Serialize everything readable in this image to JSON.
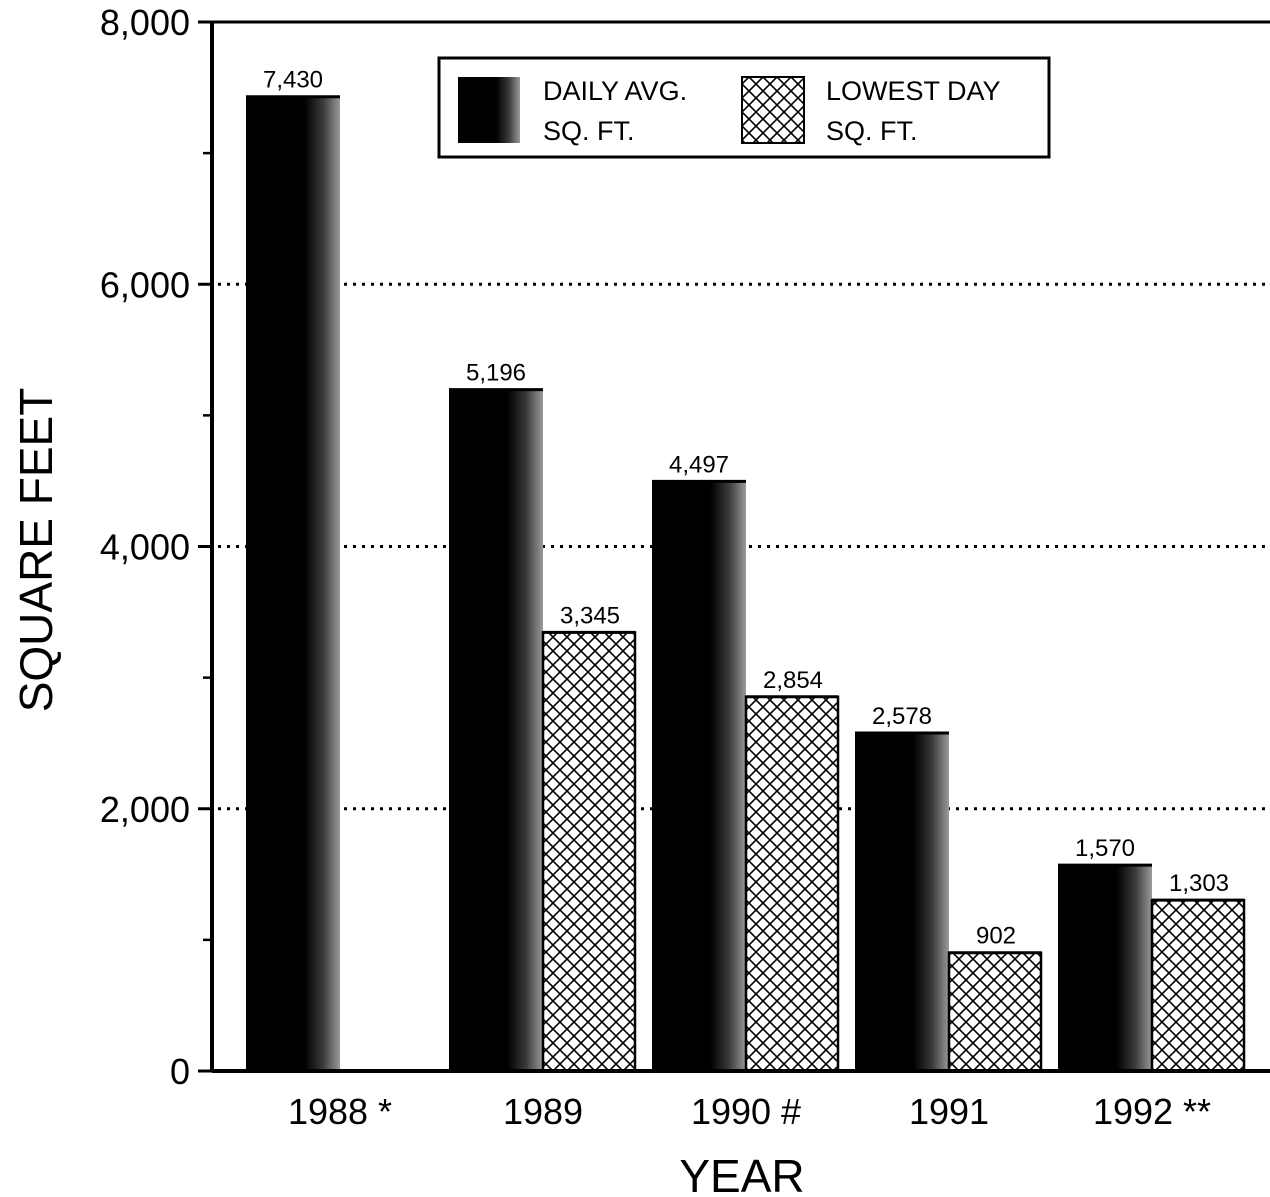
{
  "chart_data": {
    "type": "bar",
    "title": "",
    "xlabel": "YEAR",
    "ylabel": "SQUARE FEET",
    "categories": [
      "1988 *",
      "1989",
      "1990 #",
      "1991",
      "1992 **"
    ],
    "series": [
      {
        "name": "DAILY AVG. SQ. FT.",
        "legend_lines": [
          "DAILY AVG.",
          "SQ. FT."
        ],
        "pattern": "solid-black",
        "values": [
          7430,
          5196,
          4497,
          2578,
          1570
        ],
        "labels": [
          "7,430",
          "5,196",
          "4,497",
          "2,578",
          "1,570"
        ]
      },
      {
        "name": "LOWEST DAY SQ. FT.",
        "legend_lines": [
          "LOWEST DAY",
          "SQ. FT."
        ],
        "pattern": "crosshatch",
        "values": [
          null,
          3345,
          2854,
          902,
          1303
        ],
        "labels": [
          null,
          "3,345",
          "2,854",
          "902",
          "1,303"
        ]
      }
    ],
    "ylim": [
      0,
      8000
    ],
    "yticks": [
      0,
      2000,
      4000,
      6000,
      8000
    ],
    "ytick_labels": [
      "0",
      "2,000",
      "4,000",
      "6,000",
      "8,000"
    ],
    "y_minor_ticks": [
      1000,
      3000,
      5000,
      7000
    ],
    "gridlines": [
      2000,
      4000,
      6000
    ],
    "grid": "dotted horizontal",
    "legend_position": "top-right",
    "colors": {
      "bar": "#000000",
      "hatch": "#000000",
      "background": "#ffffff"
    }
  }
}
